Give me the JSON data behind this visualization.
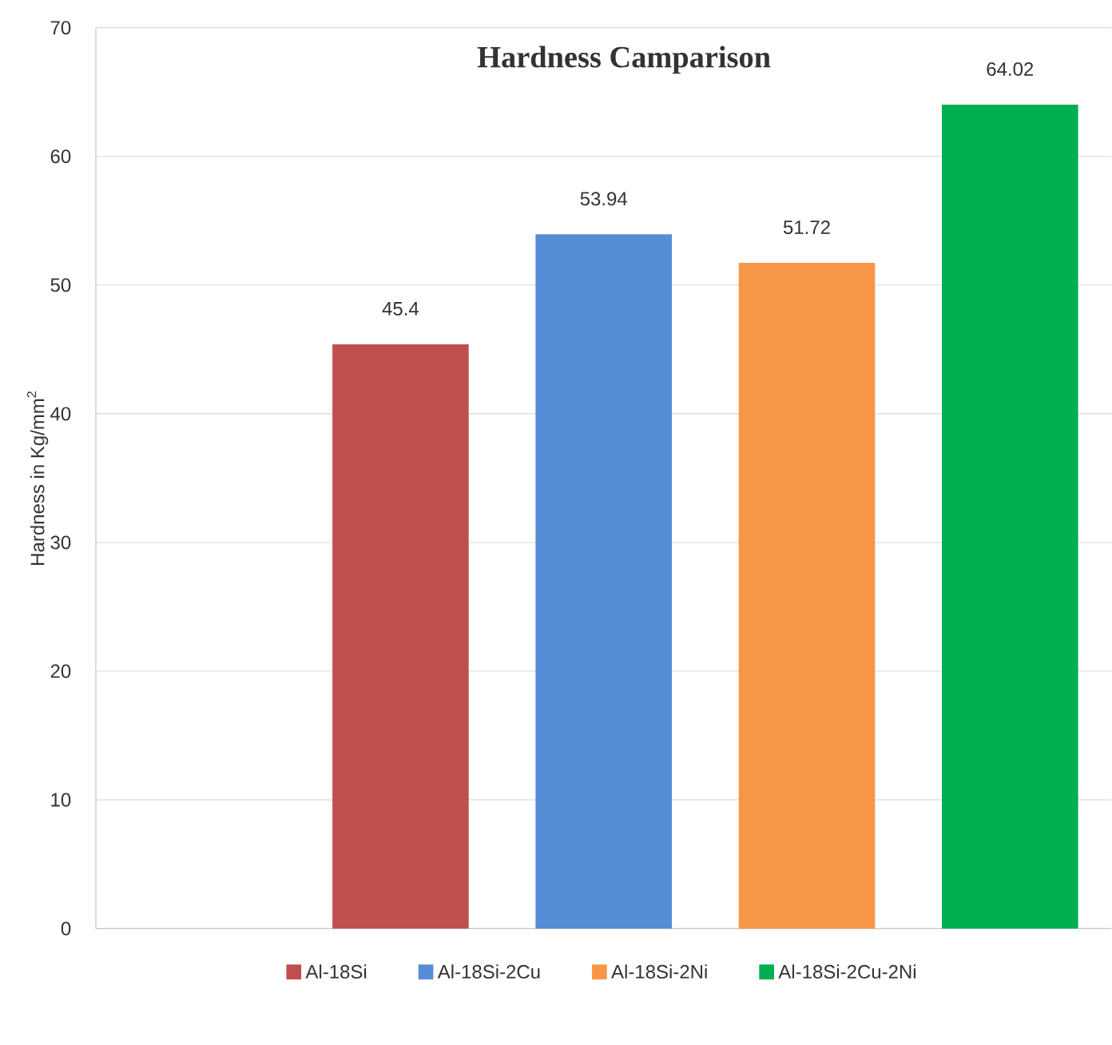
{
  "chart_data": {
    "type": "bar",
    "title": "Hardness Camparison",
    "ylabel": "Hardness  in Kg/mm$^{2}$",
    "categories": [
      null,
      null,
      null,
      null,
      null
    ],
    "series": [
      {
        "name": "Al-18Si",
        "color": "#c0504d",
        "values": [
          null,
          45.4,
          null,
          null,
          null
        ]
      },
      {
        "name": "Al-18Si-2Cu",
        "color": "#558ed5",
        "values": [
          null,
          null,
          53.94,
          null,
          null
        ]
      },
      {
        "name": "Al-18Si-2Ni",
        "color": "#f79646",
        "values": [
          null,
          null,
          null,
          51.72,
          null
        ]
      },
      {
        "name": "Al-18Si-2Cu-2Ni",
        "color": "#00b050",
        "values": [
          null,
          null,
          null,
          null,
          64.02
        ]
      }
    ],
    "ylim": [
      0,
      70
    ],
    "yticks": [
      0,
      10,
      20,
      30,
      40,
      50,
      60,
      70
    ],
    "grid": "y",
    "legend": "bottom",
    "data_labels": true
  }
}
